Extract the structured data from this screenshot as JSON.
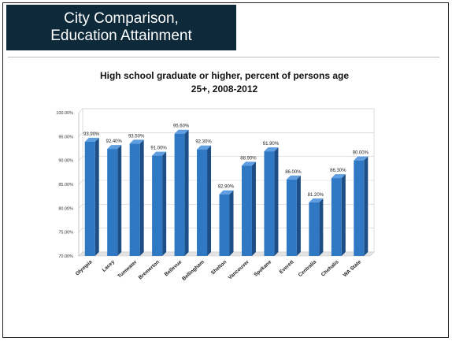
{
  "slide": {
    "title_line1": "City Comparison,",
    "title_line2": "Education Attainment"
  },
  "colors": {
    "banner": "#0e2a3a",
    "bar_front": "#2f78c4",
    "bar_side": "#1d4f86",
    "bar_top": "#5f9ee0"
  },
  "chart_data": {
    "type": "bar",
    "title": "High school graduate or higher, percent of persons age 25+, 2008-2012",
    "title_line1": "High school graduate or higher, percent of persons age",
    "title_line2": "25+, 2008-2012",
    "xlabel": "",
    "ylabel": "",
    "ylim": [
      70,
      100
    ],
    "yticks": [
      70,
      75,
      80,
      85,
      90,
      95,
      100
    ],
    "ytick_labels": [
      "70.00%",
      "75.00%",
      "80.00%",
      "85.00%",
      "90.00%",
      "95.00%",
      "100.00%"
    ],
    "grid": true,
    "legend": "none",
    "categories": [
      "Olympia",
      "Lacey",
      "Tumwater",
      "Bremerton",
      "Bellevue",
      "Bellingham",
      "Shelton",
      "Vancouver",
      "Spokane",
      "Everett",
      "Centralia",
      "Chehalis",
      "WA State"
    ],
    "values": [
      93.9,
      92.4,
      93.5,
      91.0,
      95.6,
      92.3,
      82.9,
      88.9,
      91.9,
      86.0,
      81.2,
      86.3,
      90.0
    ],
    "data_labels": [
      "93.90%",
      "92.40%",
      "93.50%",
      "91.00%",
      "95.60%",
      "92.30%",
      "82.90%",
      "88.90%",
      "91.90%",
      "86.00%",
      "81.20%",
      "86.30%",
      "90.00%"
    ]
  }
}
